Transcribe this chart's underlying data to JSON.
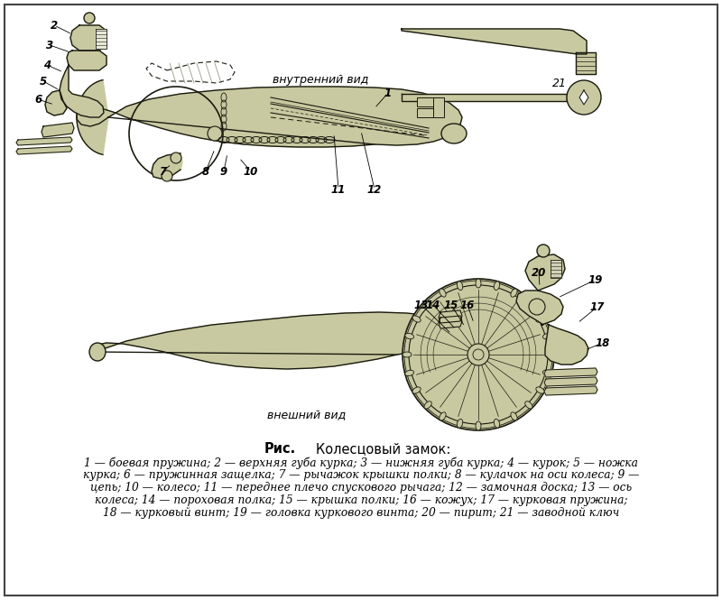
{
  "bg_color": "#ffffff",
  "border_color": "#444444",
  "mech_color": "#c8c9a0",
  "mech_edge": "#1a1a10",
  "fig_width": 8.0,
  "fig_height": 6.65,
  "dpi": 100,
  "label_vnutr": "внутренний вид",
  "label_vnesh": "внешний вид",
  "caption_title_bold": "Рис.",
  "caption_title": "    Колесцовый замок:",
  "caption_lines": [
    "1 — боевая пружина; 2 — верхняя губа курка; 3 — нижняя губа курка; 4 — курок; 5 — ножка",
    "курка; 6 — пружинная защелка; 7 — рычажок крышки полки; 8 — кулачок на оси колеса; 9 —",
    "цепь; 10 — колесо; 11 — переднее плечо спускового рычага; 12 — замочная доска; 13 — ось",
    "колеса; 14 — пороховая полка; 15 — крышка полки; 16 — кожух; 17 — курковая пружина;",
    "18 — курковый винт; 19 — головка куркового винта; 20 — пирит; 21 — заводной ключ"
  ]
}
